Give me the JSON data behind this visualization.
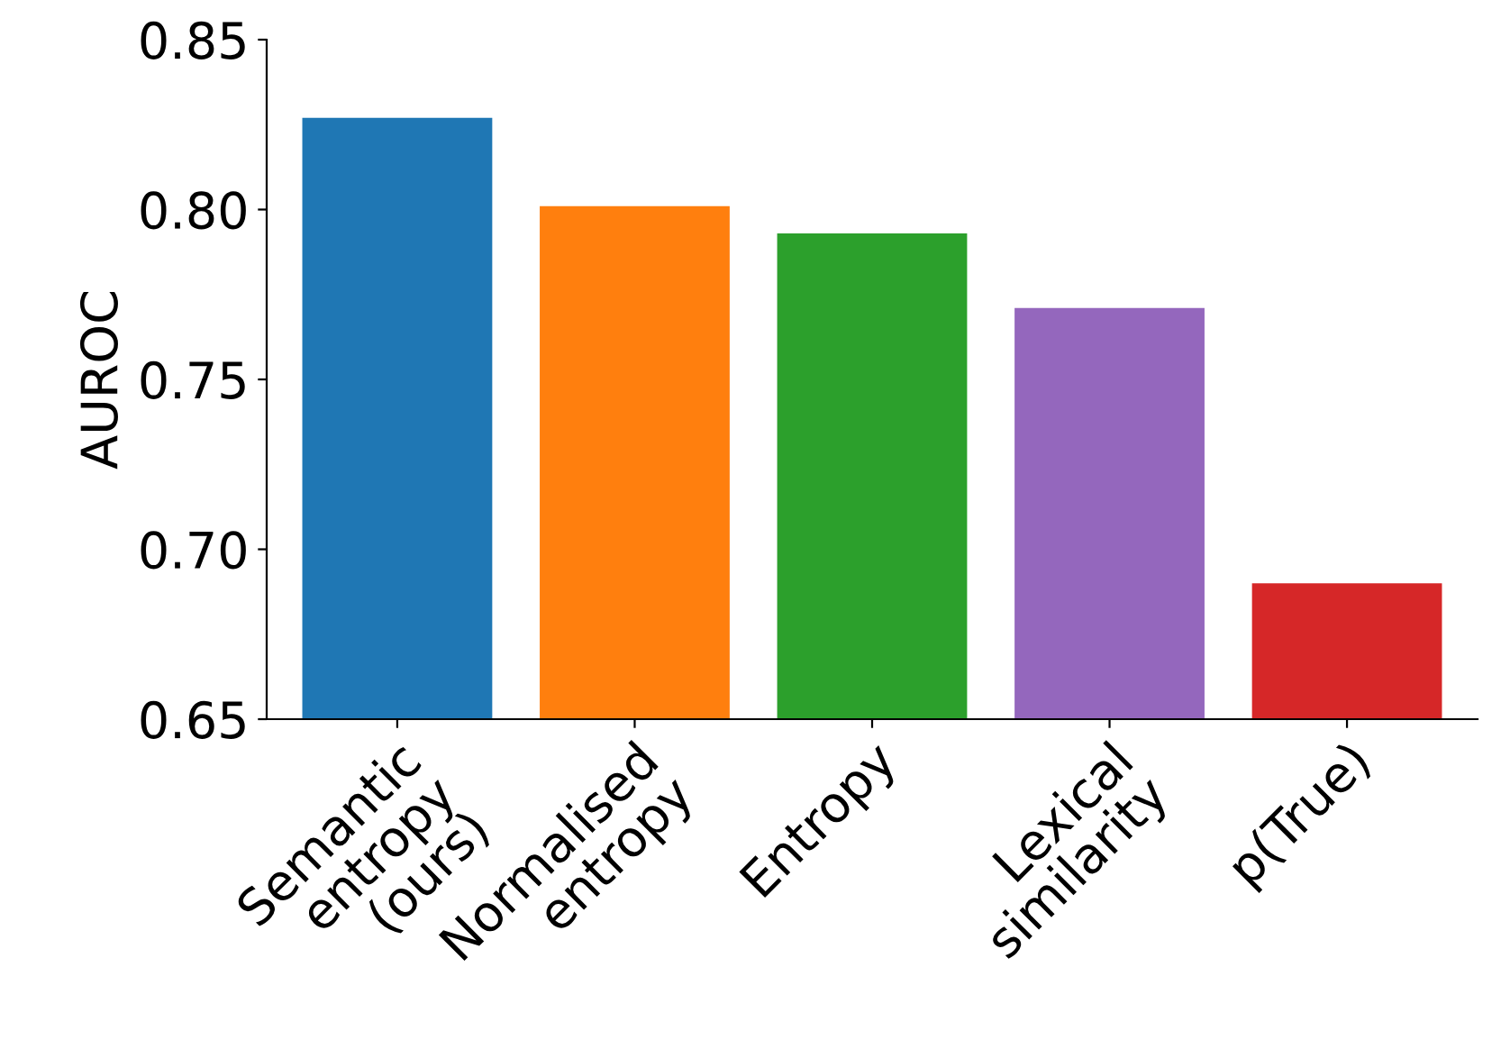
{
  "chart_data": {
    "type": "bar",
    "ylabel": "AUROC",
    "categories": [
      "Semantic\nentropy\n(ours)",
      "Normalised\nentropy",
      "Entropy",
      "Lexical\nsimilarity",
      "p(True)"
    ],
    "values": [
      0.827,
      0.801,
      0.793,
      0.771,
      0.69
    ],
    "colors": [
      "#1f77b4",
      "#ff7f0e",
      "#2ca02c",
      "#9467bd",
      "#d62728"
    ],
    "ylim": [
      0.65,
      0.85
    ],
    "yticks": [
      0.65,
      {
        "value": 0.7,
        "label": "0.70"
      },
      0.75,
      {
        "value": 0.8,
        "label": "0.80"
      },
      0.85
    ],
    "grid": false,
    "legend": false
  }
}
